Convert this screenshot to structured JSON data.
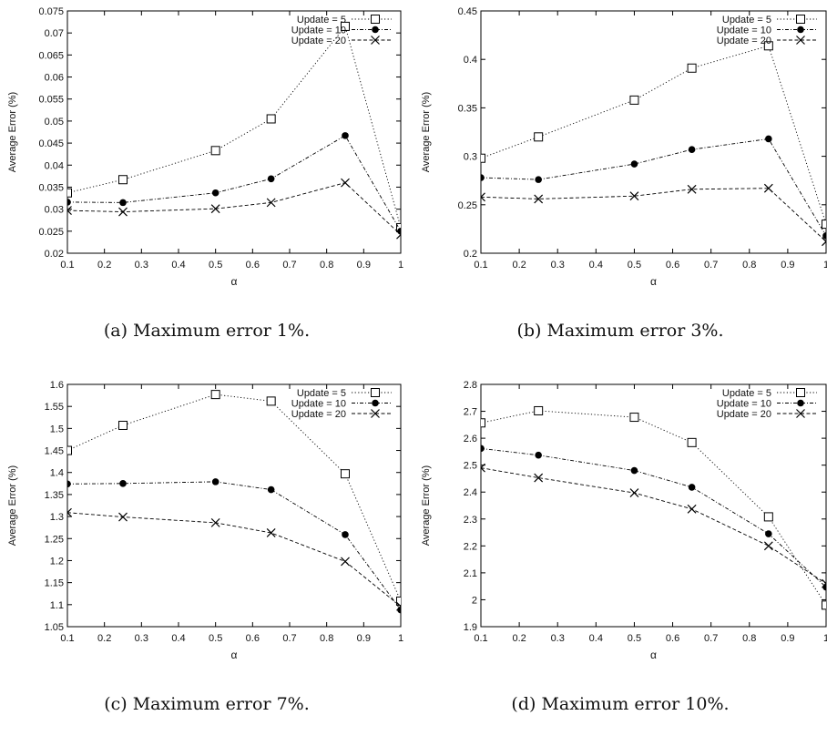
{
  "chart_data": [
    {
      "type": "line",
      "caption": "(a) Maximum error 1%.",
      "xlabel": "α",
      "ylabel": "Average Error (%)",
      "x": [
        0.1,
        0.25,
        0.5,
        0.65,
        0.85,
        1.0
      ],
      "xlim": [
        0.1,
        1.0
      ],
      "xticks": [
        "0.1",
        "0.2",
        "0.3",
        "0.4",
        "0.5",
        "0.6",
        "0.7",
        "0.8",
        "0.9",
        "1"
      ],
      "ylim": [
        0.02,
        0.075
      ],
      "yticks": [
        "0.02",
        "0.025",
        "0.03",
        "0.035",
        "0.04",
        "0.045",
        "0.05",
        "0.055",
        "0.06",
        "0.065",
        "0.07",
        "0.075"
      ],
      "legend_position": "top-right",
      "grid": false,
      "series": [
        {
          "name": "Update = 5",
          "marker": "open-square",
          "dash": "dotted",
          "values": [
            0.0337,
            0.0367,
            0.0433,
            0.0505,
            0.0715,
            0.0258
          ]
        },
        {
          "name": "Update = 10",
          "marker": "filled-circle",
          "dash": "dot-dash",
          "values": [
            0.0316,
            0.0315,
            0.0337,
            0.0369,
            0.0467,
            0.025
          ]
        },
        {
          "name": "Update = 20",
          "marker": "cross",
          "dash": "dashed",
          "values": [
            0.0297,
            0.0294,
            0.0301,
            0.0315,
            0.036,
            0.0242
          ]
        }
      ]
    },
    {
      "type": "line",
      "caption": "(b) Maximum error 3%.",
      "xlabel": "α",
      "ylabel": "Average Error (%)",
      "x": [
        0.1,
        0.25,
        0.5,
        0.65,
        0.85,
        1.0
      ],
      "xlim": [
        0.1,
        1.0
      ],
      "xticks": [
        "0.1",
        "0.2",
        "0.3",
        "0.4",
        "0.5",
        "0.6",
        "0.7",
        "0.8",
        "0.9",
        "1"
      ],
      "ylim": [
        0.2,
        0.45
      ],
      "yticks": [
        "0.2",
        "0.25",
        "0.3",
        "0.35",
        "0.4",
        "0.45"
      ],
      "legend_position": "top-right",
      "grid": false,
      "series": [
        {
          "name": "Update = 5",
          "marker": "open-square",
          "dash": "dotted",
          "values": [
            0.298,
            0.32,
            0.358,
            0.391,
            0.414,
            0.23
          ]
        },
        {
          "name": "Update = 10",
          "marker": "filled-circle",
          "dash": "dot-dash",
          "values": [
            0.278,
            0.276,
            0.292,
            0.307,
            0.318,
            0.218
          ]
        },
        {
          "name": "Update = 20",
          "marker": "cross",
          "dash": "dashed",
          "values": [
            0.258,
            0.256,
            0.259,
            0.266,
            0.267,
            0.212
          ]
        }
      ]
    },
    {
      "type": "line",
      "caption": "(c) Maximum error 7%.",
      "xlabel": "α",
      "ylabel": "Average Error (%)",
      "x": [
        0.1,
        0.25,
        0.5,
        0.65,
        0.85,
        1.0
      ],
      "xlim": [
        0.1,
        1.0
      ],
      "xticks": [
        "0.1",
        "0.2",
        "0.3",
        "0.4",
        "0.5",
        "0.6",
        "0.7",
        "0.8",
        "0.9",
        "1"
      ],
      "ylim": [
        1.05,
        1.6
      ],
      "yticks": [
        "1.05",
        "1.1",
        "1.15",
        "1.2",
        "1.25",
        "1.3",
        "1.35",
        "1.4",
        "1.45",
        "1.5",
        "1.55",
        "1.6"
      ],
      "legend_position": "top-right",
      "grid": false,
      "series": [
        {
          "name": "Update = 5",
          "marker": "open-square",
          "dash": "dotted",
          "values": [
            1.45,
            1.507,
            1.577,
            1.562,
            1.397,
            1.108
          ]
        },
        {
          "name": "Update = 10",
          "marker": "filled-circle",
          "dash": "dot-dash",
          "values": [
            1.374,
            1.375,
            1.379,
            1.361,
            1.259,
            1.088
          ]
        },
        {
          "name": "Update = 20",
          "marker": "cross",
          "dash": "dashed",
          "values": [
            1.309,
            1.299,
            1.286,
            1.263,
            1.198,
            1.096
          ]
        }
      ]
    },
    {
      "type": "line",
      "caption": "(d) Maximum error 10%.",
      "xlabel": "α",
      "ylabel": "Average Error (%)",
      "x": [
        0.1,
        0.25,
        0.5,
        0.65,
        0.85,
        1.0
      ],
      "xlim": [
        0.1,
        1.0
      ],
      "xticks": [
        "0.1",
        "0.2",
        "0.3",
        "0.4",
        "0.5",
        "0.6",
        "0.7",
        "0.8",
        "0.9",
        "1"
      ],
      "ylim": [
        1.9,
        2.8
      ],
      "yticks": [
        "1.9",
        "2",
        "2.1",
        "2.2",
        "2.3",
        "2.4",
        "2.5",
        "2.6",
        "2.7",
        "2.8"
      ],
      "legend_position": "top-right",
      "grid": false,
      "series": [
        {
          "name": "Update = 5",
          "marker": "open-square",
          "dash": "dotted",
          "values": [
            2.657,
            2.702,
            2.678,
            2.584,
            2.308,
            1.98
          ]
        },
        {
          "name": "Update = 10",
          "marker": "filled-circle",
          "dash": "dot-dash",
          "values": [
            2.562,
            2.537,
            2.48,
            2.418,
            2.245,
            2.047
          ]
        },
        {
          "name": "Update = 20",
          "marker": "cross",
          "dash": "dashed",
          "values": [
            2.49,
            2.453,
            2.397,
            2.337,
            2.2,
            2.06
          ]
        }
      ]
    }
  ]
}
